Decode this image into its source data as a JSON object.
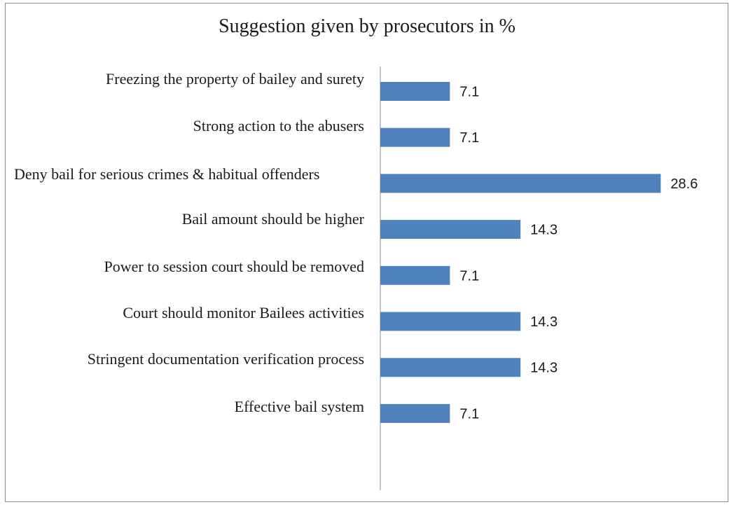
{
  "chart_data": {
    "type": "bar",
    "orientation": "horizontal",
    "title": "Suggestion given by prosecutors in %",
    "categories": [
      "Freezing the property of bailey and surety",
      "Strong action to the abusers",
      "Deny bail for serious crimes & habitual offenders",
      "Bail amount should be higher",
      "Power to session court should be removed",
      "Court should monitor Bailees activities",
      "Stringent documentation verification process",
      "Effective bail system"
    ],
    "values": [
      7.1,
      7.1,
      28.6,
      14.3,
      7.1,
      14.3,
      14.3,
      7.1
    ],
    "bar_color": "#4f81bd",
    "xlabel": "",
    "ylabel": "",
    "data_labels": true,
    "grid": false,
    "legend": "none"
  }
}
